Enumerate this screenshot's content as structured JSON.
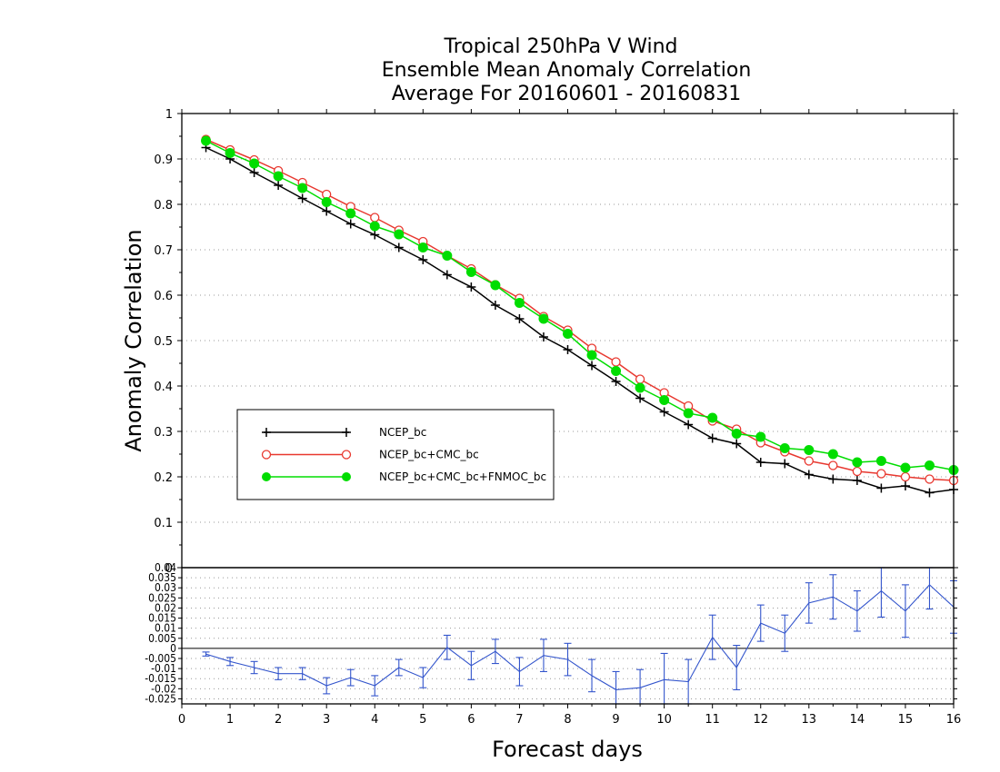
{
  "chart_data": [
    {
      "type": "line",
      "title": [
        "Tropical 250hPa V Wind",
        "Ensemble Mean Anomaly Correlation",
        "Average For 20160601 - 20160831"
      ],
      "xlabel": "Forecast days",
      "ylabel": "Anomaly Correlation",
      "xlim": [
        0,
        16
      ],
      "ylim": [
        0,
        1
      ],
      "x_ticks": [
        "0",
        "1",
        "2",
        "3",
        "4",
        "5",
        "6",
        "7",
        "8",
        "9",
        "10",
        "11",
        "12",
        "13",
        "14",
        "15",
        "16"
      ],
      "y_ticks": [
        "0",
        "0.1",
        "0.2",
        "0.3",
        "0.4",
        "0.5",
        "0.6",
        "0.7",
        "0.8",
        "0.9",
        "1"
      ],
      "grid": "horizontal dotted",
      "legend_placement": "lower-left",
      "x": [
        0.5,
        1,
        1.5,
        2,
        2.5,
        3,
        3.5,
        4,
        4.5,
        5,
        5.5,
        6,
        6.5,
        7,
        7.5,
        8,
        8.5,
        9,
        9.5,
        10,
        10.5,
        11,
        11.5,
        12,
        12.5,
        13,
        13.5,
        14,
        14.5,
        15,
        15.5,
        16
      ],
      "series": [
        {
          "name": "NCEP_bc",
          "color": "#000000",
          "marker": "plus",
          "values": [
            0.925,
            0.9,
            0.87,
            0.842,
            0.813,
            0.785,
            0.757,
            0.733,
            0.705,
            0.678,
            0.645,
            0.618,
            0.578,
            0.548,
            0.508,
            0.48,
            0.445,
            0.41,
            0.373,
            0.343,
            0.315,
            0.285,
            0.273,
            0.232,
            0.229,
            0.205,
            0.195,
            0.192,
            0.175,
            0.18,
            0.165,
            0.172
          ]
        },
        {
          "name": "NCEP_bc+CMC_bc",
          "color": "#e8382f",
          "marker": "open-circle",
          "values": [
            0.943,
            0.92,
            0.898,
            0.874,
            0.848,
            0.822,
            0.795,
            0.771,
            0.743,
            0.718,
            0.687,
            0.658,
            0.623,
            0.593,
            0.553,
            0.523,
            0.483,
            0.453,
            0.415,
            0.385,
            0.356,
            0.323,
            0.305,
            0.275,
            0.255,
            0.235,
            0.225,
            0.212,
            0.207,
            0.2,
            0.195,
            0.192
          ]
        },
        {
          "name": "NCEP_bc+CMC_bc+FNMOC_bc",
          "color": "#00dd00",
          "marker": "filled-circle",
          "values": [
            0.94,
            0.913,
            0.89,
            0.862,
            0.836,
            0.805,
            0.78,
            0.752,
            0.734,
            0.705,
            0.687,
            0.651,
            0.622,
            0.583,
            0.548,
            0.515,
            0.468,
            0.433,
            0.396,
            0.369,
            0.34,
            0.33,
            0.295,
            0.288,
            0.263,
            0.259,
            0.25,
            0.232,
            0.235,
            0.22,
            0.225,
            0.215
          ]
        }
      ]
    },
    {
      "type": "line",
      "xlabel": "Forecast days",
      "xlim": [
        0,
        16
      ],
      "ylim": [
        -0.0275,
        0.04
      ],
      "reference_line": 0,
      "y_ticks": [
        "-0.025",
        "-0.02",
        "-0.015",
        "-0.01",
        "-0.005",
        "0",
        "0.005",
        "0.01",
        "0.015",
        "0.02",
        "0.025",
        "0.03",
        "0.035",
        "0.04"
      ],
      "grid": "horizontal dotted",
      "x": [
        0.5,
        1,
        1.5,
        2,
        2.5,
        3,
        3.5,
        4,
        4.5,
        5,
        5.5,
        6,
        6.5,
        7,
        7.5,
        8,
        8.5,
        9,
        9.5,
        10,
        10.5,
        11,
        11.5,
        12,
        12.5,
        13,
        13.5,
        14,
        14.5,
        15,
        15.5,
        16
      ],
      "series": [
        {
          "color": "#3355cc",
          "marker": "error-bar",
          "values": [
            -0.0028,
            -0.0065,
            -0.0095,
            -0.0125,
            -0.0125,
            -0.0185,
            -0.0145,
            -0.0185,
            -0.0095,
            -0.0145,
            0.0005,
            -0.0085,
            -0.0015,
            -0.0115,
            -0.0035,
            -0.0055,
            -0.0135,
            -0.0205,
            -0.0195,
            -0.0155,
            -0.0165,
            0.0055,
            -0.0095,
            0.0125,
            0.0075,
            0.0225,
            0.0255,
            0.0185,
            0.0285,
            0.0185,
            0.0315,
            0.0205
          ],
          "error": [
            0.001,
            0.002,
            0.003,
            0.003,
            0.003,
            0.004,
            0.004,
            0.005,
            0.004,
            0.005,
            0.006,
            0.007,
            0.006,
            0.007,
            0.008,
            0.008,
            0.008,
            0.009,
            0.009,
            0.013,
            0.011,
            0.011,
            0.011,
            0.009,
            0.009,
            0.01,
            0.011,
            0.01,
            0.013,
            0.013,
            0.012,
            0.013
          ]
        }
      ]
    }
  ]
}
